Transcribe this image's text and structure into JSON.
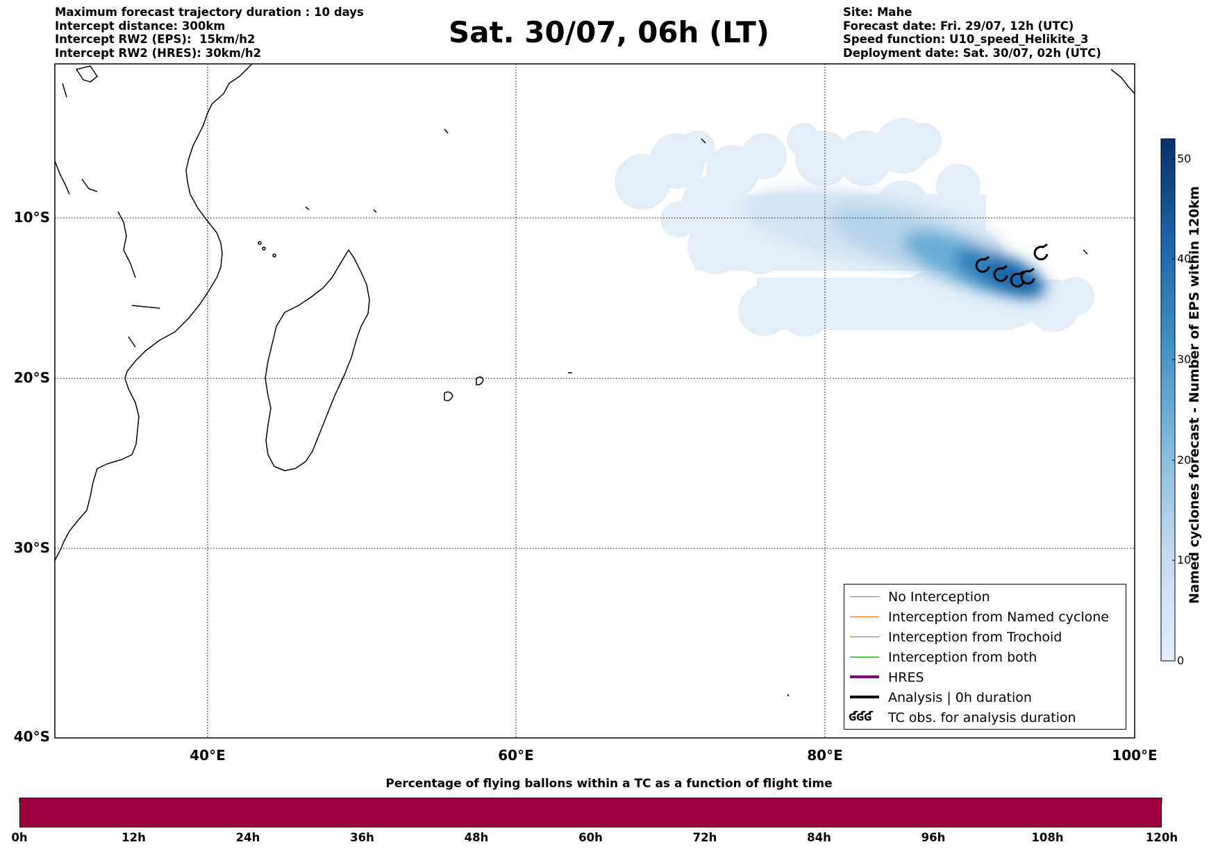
{
  "header_left": [
    "Maximum forecast trajectory duration : 10 days",
    "Intercept distance: 300km",
    "Intercept RW2 (EPS):  15km/h2",
    "Intercept RW2 (HRES): 30km/h2"
  ],
  "header_right": [
    "Site: Mahe",
    "Forecast date: Fri. 29/07, 12h (UTC)",
    "Speed function: U10_speed_Helikite_3",
    "Deployment date: Sat. 30/07, 02h (UTC)"
  ],
  "title": "Sat. 30/07, 06h (LT)",
  "map": {
    "lat_labels": [
      "10°S",
      "20°S",
      "30°S",
      "40°S"
    ],
    "lon_labels": [
      "40°E",
      "60°E",
      "80°E",
      "100°E"
    ],
    "lon_range": [
      30,
      100
    ],
    "lat_range": [
      -40,
      -1
    ],
    "land_color": "#ffffff",
    "coast_color": "#000000"
  },
  "legend": {
    "items": [
      {
        "label": "No Interception",
        "color": "#808080"
      },
      {
        "label": "Interception from Named cyclone",
        "color": "#ff6a00"
      },
      {
        "label": "Interception from Trochoid",
        "color": "#808000"
      },
      {
        "label": "Interception from both",
        "color": "#008000"
      },
      {
        "label": "HRES",
        "color": "#800080"
      },
      {
        "label": "Analysis | 0h duration",
        "color": "#000000"
      },
      {
        "label": "TC obs. for analysis duration",
        "glyph": "ʛʛʛ"
      }
    ]
  },
  "colorbar": {
    "label": "Named cyclones forecast - Number of EPS within 120km",
    "ticks": [
      "0",
      "10",
      "20",
      "30",
      "40",
      "50"
    ],
    "range": [
      0,
      52
    ],
    "color_low": "#e3eef9",
    "color_high": "#08306b"
  },
  "bottom_bar": {
    "title": "Percentage of flying ballons within a TC as a function of flight time",
    "ticks": [
      "0h",
      "12h",
      "24h",
      "36h",
      "48h",
      "60h",
      "72h",
      "84h",
      "96h",
      "108h",
      "120h"
    ],
    "color": "#9e0040"
  }
}
